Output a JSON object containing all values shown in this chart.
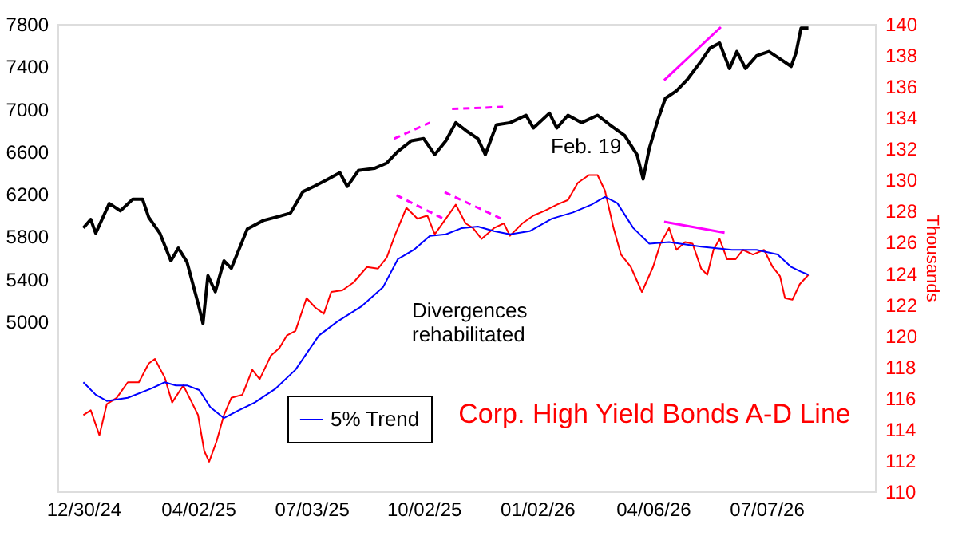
{
  "chart_data": {
    "type": "line",
    "y2label": "Thousands",
    "ylim": [
      3400,
      7800
    ],
    "yticks": [
      5000,
      5400,
      5800,
      6200,
      6600,
      7000,
      7400,
      7800
    ],
    "y2lim": [
      110,
      140
    ],
    "y2ticks": [
      110,
      112,
      114,
      116,
      118,
      120,
      122,
      124,
      126,
      128,
      130,
      132,
      134,
      136,
      138,
      140
    ],
    "xlim": [
      "2024-12-09",
      "2026-10-03"
    ],
    "xticks": [
      {
        "value": "2024-12-30",
        "label": "12/30/24"
      },
      {
        "value": "2025-04-02",
        "label": "04/02/25"
      },
      {
        "value": "2025-07-03",
        "label": "07/03/25"
      },
      {
        "value": "2025-10-02",
        "label": "10/02/25"
      },
      {
        "value": "2026-01-02",
        "label": "01/02/26"
      },
      {
        "value": "2026-04-06",
        "label": "04/06/26"
      },
      {
        "value": "2026-07-07",
        "label": "07/07/26"
      }
    ],
    "legend": "bottom left",
    "annotations": [
      "Feb. 19",
      "Divergences rehabilitated"
    ],
    "series": [
      {
        "color": "#000000",
        "line_style": "solid",
        "x": [
          "2024-12-30",
          "2025-01-05",
          "2025-01-09",
          "2025-01-20",
          "2025-01-29",
          "2025-02-08",
          "2025-02-16",
          "2025-02-21",
          "2025-03-02",
          "2025-03-11",
          "2025-03-17",
          "2025-03-24",
          "2025-04-02",
          "2025-04-06",
          "2025-04-10",
          "2025-04-16",
          "2025-04-23",
          "2025-04-29",
          "2025-05-12",
          "2025-05-25",
          "2025-06-07",
          "2025-06-16",
          "2025-06-26",
          "2025-07-05",
          "2025-07-15",
          "2025-07-26",
          "2025-08-01",
          "2025-08-10",
          "2025-08-23",
          "2025-09-02",
          "2025-09-11",
          "2025-09-22",
          "2025-10-02",
          "2025-10-11",
          "2025-10-20",
          "2025-10-28",
          "2025-11-06",
          "2025-11-15",
          "2025-11-21",
          "2025-11-30",
          "2025-12-11",
          "2025-12-24",
          "2025-12-30",
          "2026-01-12",
          "2026-01-18",
          "2026-01-27",
          "2026-02-07",
          "2026-02-20",
          "2026-03-02",
          "2026-03-14",
          "2026-03-24",
          "2026-03-29",
          "2026-04-03",
          "2026-04-10",
          "2026-04-16",
          "2026-04-25",
          "2026-05-04",
          "2026-05-15",
          "2026-05-22",
          "2026-05-30",
          "2026-06-07",
          "2026-06-13",
          "2026-06-20",
          "2026-06-29",
          "2026-07-09",
          "2026-07-18",
          "2026-07-27",
          "2026-07-31",
          "2026-08-04",
          "2026-08-10"
        ],
        "values": [
          5880,
          5960,
          5830,
          6110,
          6040,
          6150,
          6150,
          5980,
          5830,
          5570,
          5690,
          5560,
          5170,
          4980,
          5430,
          5280,
          5570,
          5500,
          5870,
          5950,
          5990,
          6020,
          6220,
          6270,
          6330,
          6400,
          6270,
          6420,
          6440,
          6490,
          6600,
          6700,
          6720,
          6570,
          6700,
          6870,
          6790,
          6720,
          6570,
          6850,
          6870,
          6940,
          6820,
          6960,
          6820,
          6940,
          6870,
          6940,
          6850,
          6750,
          6570,
          6340,
          6630,
          6900,
          7100,
          7170,
          7280,
          7450,
          7570,
          7620,
          7380,
          7540,
          7380,
          7500,
          7540,
          7470,
          7400,
          7530,
          7760,
          7760
        ]
      },
      {
        "name": "Corp. High Yield Bonds A-D Line",
        "axis": "y2",
        "color": "#ff0000",
        "line_style": "solid",
        "x": [
          "2024-12-30",
          "2025-01-05",
          "2025-01-12",
          "2025-01-18",
          "2025-01-26",
          "2025-02-04",
          "2025-02-13",
          "2025-02-21",
          "2025-02-26",
          "2025-03-06",
          "2025-03-12",
          "2025-03-21",
          "2025-03-28",
          "2025-04-02",
          "2025-04-07",
          "2025-04-11",
          "2025-04-17",
          "2025-04-23",
          "2025-04-29",
          "2025-05-08",
          "2025-05-16",
          "2025-05-22",
          "2025-05-31",
          "2025-06-07",
          "2025-06-13",
          "2025-06-20",
          "2025-06-29",
          "2025-07-06",
          "2025-07-13",
          "2025-07-19",
          "2025-07-28",
          "2025-08-06",
          "2025-08-17",
          "2025-08-26",
          "2025-09-02",
          "2025-09-09",
          "2025-09-18",
          "2025-09-27",
          "2025-10-05",
          "2025-10-11",
          "2025-10-20",
          "2025-10-28",
          "2025-11-05",
          "2025-11-11",
          "2025-11-18",
          "2025-11-28",
          "2025-12-06",
          "2025-12-11",
          "2025-12-21",
          "2025-12-30",
          "2026-01-08",
          "2026-01-18",
          "2026-01-27",
          "2026-02-04",
          "2026-02-13",
          "2026-02-20",
          "2026-02-26",
          "2026-03-05",
          "2026-03-11",
          "2026-03-19",
          "2026-03-28",
          "2026-04-06",
          "2026-04-12",
          "2026-04-19",
          "2026-04-25",
          "2026-05-02",
          "2026-05-08",
          "2026-05-15",
          "2026-05-20",
          "2026-05-25",
          "2026-05-30",
          "2026-06-05",
          "2026-06-12",
          "2026-06-18",
          "2026-06-26",
          "2026-07-05",
          "2026-07-12",
          "2026-07-18",
          "2026-07-22",
          "2026-07-28",
          "2026-08-03",
          "2026-08-10"
        ],
        "values": [
          114.9,
          115.2,
          113.6,
          115.6,
          116.0,
          117.0,
          117.0,
          118.2,
          118.5,
          117.3,
          115.7,
          116.8,
          115.7,
          114.9,
          112.6,
          111.9,
          113.2,
          114.9,
          116.0,
          116.2,
          117.8,
          117.2,
          118.7,
          119.2,
          120.0,
          120.3,
          122.4,
          121.8,
          121.4,
          122.8,
          122.9,
          123.4,
          124.4,
          124.3,
          125.0,
          126.5,
          128.2,
          127.5,
          127.7,
          126.5,
          127.5,
          128.4,
          127.2,
          126.9,
          126.2,
          126.9,
          127.2,
          126.4,
          127.2,
          127.7,
          128.0,
          128.4,
          128.7,
          129.8,
          130.3,
          130.3,
          129.3,
          126.9,
          125.2,
          124.4,
          122.8,
          124.4,
          125.9,
          126.9,
          125.5,
          126.0,
          125.9,
          124.3,
          123.9,
          125.5,
          126.2,
          124.9,
          124.9,
          125.5,
          125.2,
          125.5,
          124.4,
          123.8,
          122.4,
          122.3,
          123.3,
          123.9
        ]
      },
      {
        "name": "5% Trend",
        "axis": "y2",
        "color": "#0000ff",
        "line_style": "solid",
        "x": [
          "2024-12-30",
          "2025-01-09",
          "2025-01-18",
          "2025-02-04",
          "2025-02-23",
          "2025-03-06",
          "2025-03-15",
          "2025-03-24",
          "2025-04-03",
          "2025-04-12",
          "2025-04-23",
          "2025-05-05",
          "2025-05-18",
          "2025-06-04",
          "2025-06-20",
          "2025-07-09",
          "2025-07-24",
          "2025-08-13",
          "2025-08-30",
          "2025-09-11",
          "2025-09-24",
          "2025-10-07",
          "2025-10-20",
          "2025-11-02",
          "2025-11-15",
          "2025-11-28",
          "2025-12-11",
          "2025-12-27",
          "2026-01-14",
          "2026-01-31",
          "2026-02-15",
          "2026-02-26",
          "2026-03-08",
          "2026-03-21",
          "2026-04-03",
          "2026-04-19",
          "2026-05-15",
          "2026-06-09",
          "2026-06-29",
          "2026-07-16",
          "2026-07-27",
          "2026-08-04",
          "2026-08-10"
        ],
        "values": [
          117.0,
          116.2,
          115.8,
          116.0,
          116.6,
          117.0,
          116.8,
          116.8,
          116.5,
          115.4,
          114.7,
          115.2,
          115.7,
          116.6,
          117.8,
          120.0,
          120.9,
          121.9,
          123.1,
          124.9,
          125.5,
          126.4,
          126.5,
          126.9,
          127.0,
          126.7,
          126.5,
          126.7,
          127.5,
          127.9,
          128.4,
          128.9,
          128.5,
          126.9,
          125.9,
          126.0,
          125.7,
          125.5,
          125.5,
          125.2,
          124.4,
          124.1,
          123.9
        ]
      },
      {
        "color": "#ff00ff",
        "line_style": "dashed",
        "x": [
          "2025-09-08",
          "2025-10-07"
        ],
        "values": [
          6720,
          6870
        ]
      },
      {
        "color": "#ff00ff",
        "line_style": "dashed",
        "x": [
          "2025-10-25",
          "2025-12-08"
        ],
        "values": [
          7000,
          7020
        ]
      },
      {
        "color": "#ff00ff",
        "line_style": "solid",
        "x": [
          "2026-04-15",
          "2026-05-31"
        ],
        "values": [
          7270,
          7770
        ]
      },
      {
        "axis": "y2",
        "color": "#ff00ff",
        "line_style": "dashed",
        "x": [
          "2025-09-10",
          "2025-10-18"
        ],
        "values": [
          129.0,
          127.5
        ]
      },
      {
        "axis": "y2",
        "color": "#ff00ff",
        "line_style": "dashed",
        "x": [
          "2025-10-19",
          "2025-12-04"
        ],
        "values": [
          129.2,
          127.5
        ]
      },
      {
        "axis": "y2",
        "color": "#ff00ff",
        "line_style": "solid",
        "x": [
          "2026-04-15",
          "2026-06-03"
        ],
        "values": [
          127.3,
          126.6
        ]
      }
    ]
  }
}
